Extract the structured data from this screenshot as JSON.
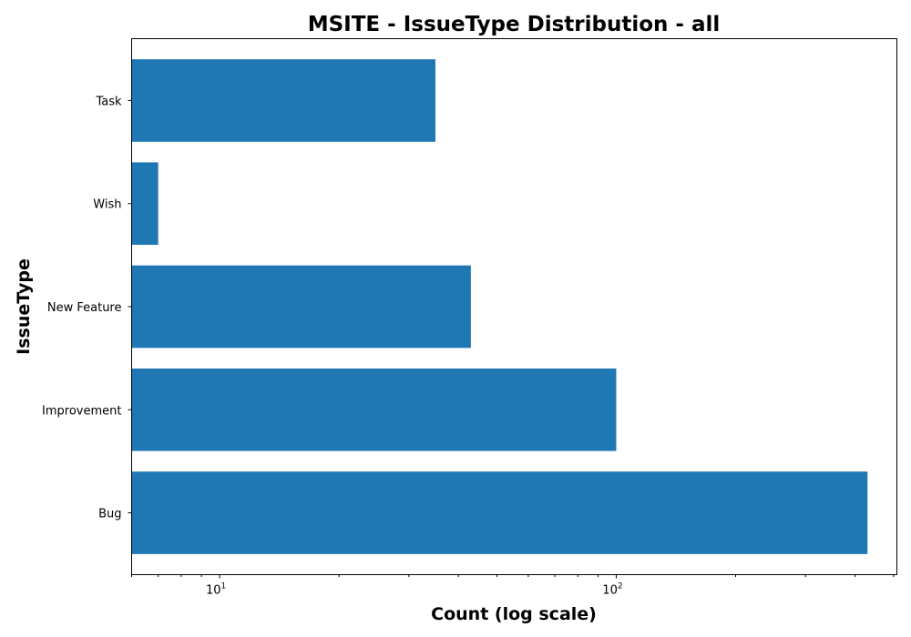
{
  "chart_data": {
    "type": "bar",
    "orientation": "horizontal",
    "title": "MSITE - IssueType Distribution - all",
    "xlabel": "Count (log scale)",
    "ylabel": "IssueType",
    "xscale": "log",
    "xlim": [
      6,
      510
    ],
    "categories": [
      "Bug",
      "Improvement",
      "New Feature",
      "Wish",
      "Task"
    ],
    "values": [
      430,
      100,
      43,
      7,
      35
    ],
    "major_ticks": [
      {
        "value": 10,
        "base": "10",
        "exponent": "1"
      },
      {
        "value": 100,
        "base": "10",
        "exponent": "2"
      }
    ],
    "bar_color": "#1f77b4",
    "grid": false,
    "legend": "none"
  }
}
